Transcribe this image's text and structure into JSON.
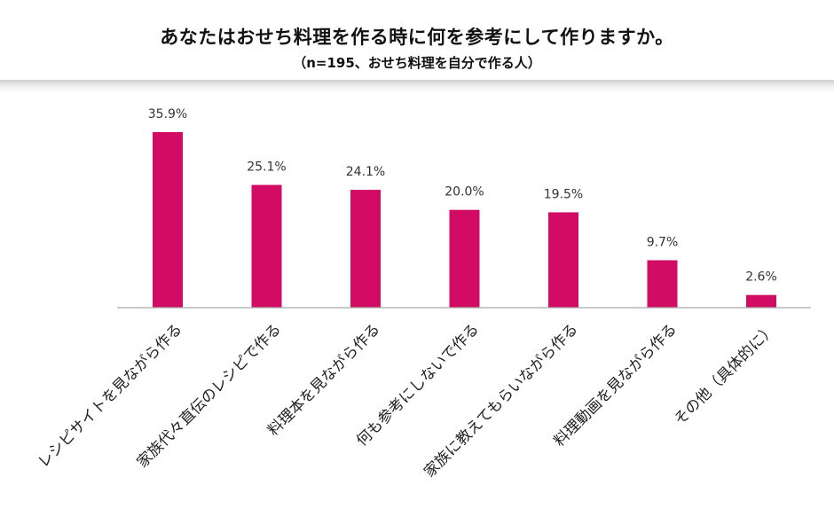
{
  "header": {
    "title": "あなたはおせち料理を作る時に何を参考にして作りますか。",
    "subtitle": "（n=195、おせち料理を自分で作る人）"
  },
  "colors": {
    "bar": "#d20c64",
    "axis": "#aaaaaa"
  },
  "chart_data": {
    "type": "bar",
    "title": "あなたはおせち料理を作る時に何を参考にして作りますか。",
    "subtitle": "（n=195、おせち料理を自分で作る人）",
    "categories": [
      "レシピサイトを見ながら作る",
      "家族代々直伝のレシピで作る",
      "料理本を見ながら作る",
      "何も参考にしないで作る",
      "家族に教えてもらいながら作る",
      "料理動画を見ながら作る",
      "その他（具体的に）"
    ],
    "values": [
      35.9,
      25.1,
      24.1,
      20.0,
      19.5,
      9.7,
      2.6
    ],
    "value_labels": [
      "35.9%",
      "25.1%",
      "24.1%",
      "20.0%",
      "19.5%",
      "9.7%",
      "2.6%"
    ],
    "unit": "%",
    "xlabel": "",
    "ylabel": "",
    "ylim": [
      0,
      36
    ]
  }
}
